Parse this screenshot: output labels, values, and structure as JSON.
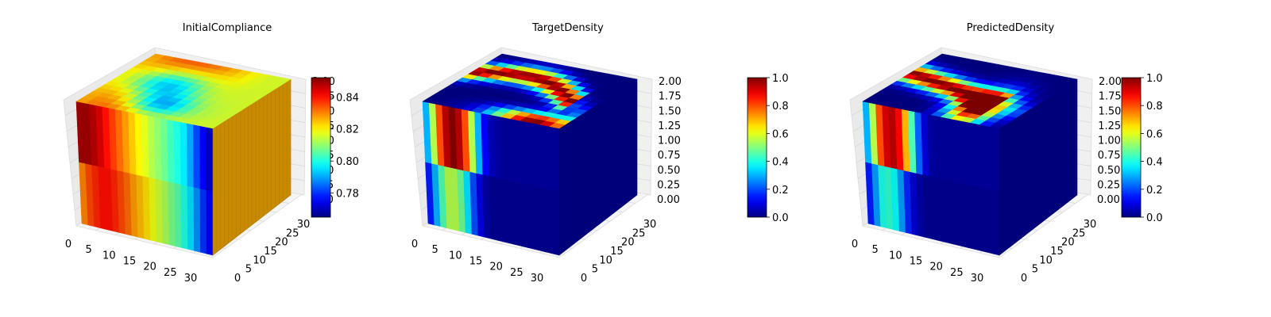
{
  "chart_data": [
    {
      "type": "voxel-3d",
      "title": "InitialCompliance",
      "x_ticks": [
        0,
        5,
        10,
        15,
        20,
        25,
        30
      ],
      "y_ticks": [
        0,
        5,
        10,
        15,
        20,
        25,
        30
      ],
      "z_ticks": [
        "0.00",
        "0.25",
        "0.50",
        "0.75",
        "1.00",
        "1.25",
        "1.50",
        "1.75",
        "2.00"
      ],
      "colorbar": {
        "ticks": [
          "0.78",
          "0.80",
          "0.82",
          "0.84"
        ],
        "min": 0.765,
        "max": 0.852,
        "colormap": "jet"
      },
      "front_face_profile": [
        0.85,
        0.85,
        0.848,
        0.845,
        0.84,
        0.836,
        0.832,
        0.828,
        0.824,
        0.82,
        0.817,
        0.813,
        0.81,
        0.807,
        0.803,
        0.8,
        0.796,
        0.79,
        0.782,
        0.775,
        0.77
      ],
      "lower_front_profile": [
        0.83,
        0.835,
        0.838,
        0.84,
        0.84,
        0.838,
        0.835,
        0.832,
        0.828,
        0.825,
        0.822,
        0.818,
        0.815,
        0.812,
        0.808,
        0.805,
        0.8,
        0.795,
        0.788,
        0.78,
        0.775
      ],
      "side_face_value": 0.826
    },
    {
      "type": "voxel-3d",
      "title": "TargetDensity",
      "x_ticks": [
        0,
        5,
        10,
        15,
        20,
        25,
        30
      ],
      "y_ticks": [
        0,
        5,
        10,
        15,
        20,
        25,
        30
      ],
      "z_ticks": [
        "0.00",
        "0.25",
        "0.50",
        "0.75",
        "1.00",
        "1.25",
        "1.50",
        "1.75",
        "2.00"
      ],
      "colorbar": {
        "ticks": [
          "0.0",
          "0.2",
          "0.4",
          "0.6",
          "0.8",
          "1.0"
        ],
        "min": 0,
        "max": 1,
        "colormap": "jet"
      },
      "front_face_profile": [
        0.3,
        0.55,
        0.8,
        0.95,
        1.0,
        0.95,
        0.8,
        0.55,
        0.3,
        0.12,
        0.05,
        0.03,
        0.02,
        0.02,
        0.02,
        0.02,
        0.02,
        0.02,
        0.02,
        0.02,
        0.02
      ],
      "lower_front_profile": [
        0.15,
        0.3,
        0.45,
        0.55,
        0.55,
        0.48,
        0.35,
        0.2,
        0.1,
        0.04,
        0.02,
        0.02,
        0.02,
        0.02,
        0.02,
        0.02,
        0.02,
        0.02,
        0.02,
        0.02,
        0.02
      ],
      "side_face_value": 0.03
    },
    {
      "type": "voxel-3d",
      "title": "PredictedDensity",
      "x_ticks": [
        0,
        5,
        10,
        15,
        20,
        25,
        30
      ],
      "y_ticks": [
        0,
        5,
        10,
        15,
        20,
        25,
        30
      ],
      "z_ticks": [
        "0.00",
        "0.25",
        "0.50",
        "0.75",
        "1.00",
        "1.25",
        "1.50",
        "1.75",
        "2.00"
      ],
      "colorbar": {
        "ticks": [
          "0.0",
          "0.2",
          "0.4",
          "0.6",
          "0.8",
          "1.0"
        ],
        "min": 0,
        "max": 1,
        "colormap": "jet"
      },
      "front_face_profile": [
        0.3,
        0.55,
        0.8,
        0.92,
        0.95,
        0.88,
        0.7,
        0.45,
        0.22,
        0.08,
        0.03,
        0.02,
        0.02,
        0.02,
        0.02,
        0.02,
        0.02,
        0.02,
        0.02,
        0.02,
        0.02
      ],
      "lower_front_profile": [
        0.15,
        0.28,
        0.4,
        0.42,
        0.38,
        0.28,
        0.16,
        0.08,
        0.04,
        0.02,
        0.02,
        0.02,
        0.02,
        0.02,
        0.02,
        0.02,
        0.02,
        0.02,
        0.02,
        0.02,
        0.02
      ],
      "side_face_value": 0.03
    }
  ]
}
